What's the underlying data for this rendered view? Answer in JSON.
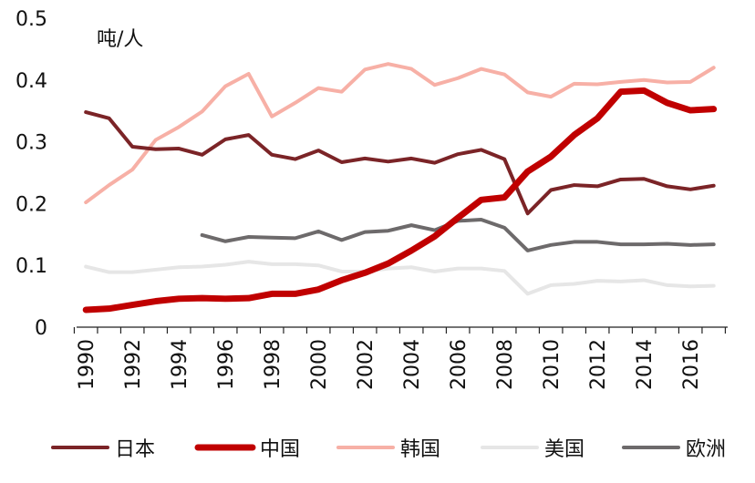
{
  "chart_data": {
    "type": "line",
    "title": "",
    "xlabel": "",
    "ylabel": "",
    "unit_label": "吨/人",
    "xlim": [
      1990,
      2017
    ],
    "ylim": [
      0,
      0.5
    ],
    "y_ticks": [
      "0",
      "0.1",
      "0.2",
      "0.3",
      "0.4",
      "0.5"
    ],
    "y_tick_values": [
      0,
      0.1,
      0.2,
      0.3,
      0.4,
      0.5
    ],
    "x_ticks": [
      "1990",
      "1992",
      "1994",
      "1996",
      "1998",
      "2000",
      "2002",
      "2004",
      "2006",
      "2008",
      "2010",
      "2012",
      "2014",
      "2016"
    ],
    "x_tick_values": [
      1990,
      1992,
      1994,
      1996,
      1998,
      2000,
      2002,
      2004,
      2006,
      2008,
      2010,
      2012,
      2014,
      2016
    ],
    "grid": false,
    "legend_position": "bottom",
    "series": [
      {
        "name": "日本",
        "color": "#7b2427",
        "x": [
          1990,
          1991,
          1992,
          1993,
          1994,
          1995,
          1996,
          1997,
          1998,
          1999,
          2000,
          2001,
          2002,
          2003,
          2004,
          2005,
          2006,
          2007,
          2008,
          2009,
          2010,
          2011,
          2012,
          2013,
          2014,
          2015,
          2016,
          2017
        ],
        "values": [
          0.348,
          0.338,
          0.292,
          0.288,
          0.289,
          0.279,
          0.304,
          0.311,
          0.279,
          0.272,
          0.286,
          0.267,
          0.273,
          0.268,
          0.273,
          0.266,
          0.28,
          0.287,
          0.272,
          0.184,
          0.222,
          0.23,
          0.228,
          0.239,
          0.24,
          0.228,
          0.223,
          0.229
        ]
      },
      {
        "name": "中国",
        "color": "#c00000",
        "x": [
          1990,
          1991,
          1992,
          1993,
          1994,
          1995,
          1996,
          1997,
          1998,
          1999,
          2000,
          2001,
          2002,
          2003,
          2004,
          2005,
          2006,
          2007,
          2008,
          2009,
          2010,
          2011,
          2012,
          2013,
          2014,
          2015,
          2016,
          2017
        ],
        "values": [
          0.028,
          0.03,
          0.036,
          0.042,
          0.046,
          0.047,
          0.046,
          0.047,
          0.054,
          0.054,
          0.061,
          0.076,
          0.088,
          0.103,
          0.124,
          0.147,
          0.177,
          0.206,
          0.21,
          0.252,
          0.276,
          0.311,
          0.338,
          0.381,
          0.383,
          0.363,
          0.351,
          0.353
        ]
      },
      {
        "name": "韩国",
        "color": "#f7b0a6",
        "x": [
          1990,
          1991,
          1992,
          1993,
          1994,
          1995,
          1996,
          1997,
          1998,
          1999,
          2000,
          2001,
          2002,
          2003,
          2004,
          2005,
          2006,
          2007,
          2008,
          2009,
          2010,
          2011,
          2012,
          2013,
          2014,
          2015,
          2016,
          2017
        ],
        "values": [
          0.202,
          0.23,
          0.255,
          0.303,
          0.324,
          0.349,
          0.39,
          0.41,
          0.341,
          0.363,
          0.387,
          0.381,
          0.417,
          0.426,
          0.418,
          0.392,
          0.403,
          0.418,
          0.409,
          0.38,
          0.373,
          0.394,
          0.393,
          0.397,
          0.4,
          0.396,
          0.397,
          0.42
        ]
      },
      {
        "name": "美国",
        "color": "#e6e6e6",
        "x": [
          1990,
          1991,
          1992,
          1993,
          1994,
          1995,
          1996,
          1997,
          1998,
          1999,
          2000,
          2001,
          2002,
          2003,
          2004,
          2005,
          2006,
          2007,
          2008,
          2009,
          2010,
          2011,
          2012,
          2013,
          2014,
          2015,
          2016,
          2017
        ],
        "values": [
          0.098,
          0.089,
          0.089,
          0.093,
          0.097,
          0.098,
          0.101,
          0.106,
          0.102,
          0.102,
          0.1,
          0.09,
          0.09,
          0.095,
          0.097,
          0.09,
          0.095,
          0.095,
          0.091,
          0.054,
          0.068,
          0.07,
          0.075,
          0.074,
          0.076,
          0.068,
          0.066,
          0.067
        ]
      },
      {
        "name": "欧洲",
        "color": "#6d6a6b",
        "x": [
          1995,
          1996,
          1997,
          1998,
          1999,
          2000,
          2001,
          2002,
          2003,
          2004,
          2005,
          2006,
          2007,
          2008,
          2009,
          2010,
          2011,
          2012,
          2013,
          2014,
          2015,
          2016,
          2017
        ],
        "values": [
          0.149,
          0.139,
          0.146,
          0.145,
          0.144,
          0.155,
          0.141,
          0.154,
          0.156,
          0.165,
          0.157,
          0.172,
          0.174,
          0.161,
          0.124,
          0.133,
          0.138,
          0.138,
          0.134,
          0.134,
          0.135,
          0.133,
          0.134
        ]
      }
    ]
  }
}
